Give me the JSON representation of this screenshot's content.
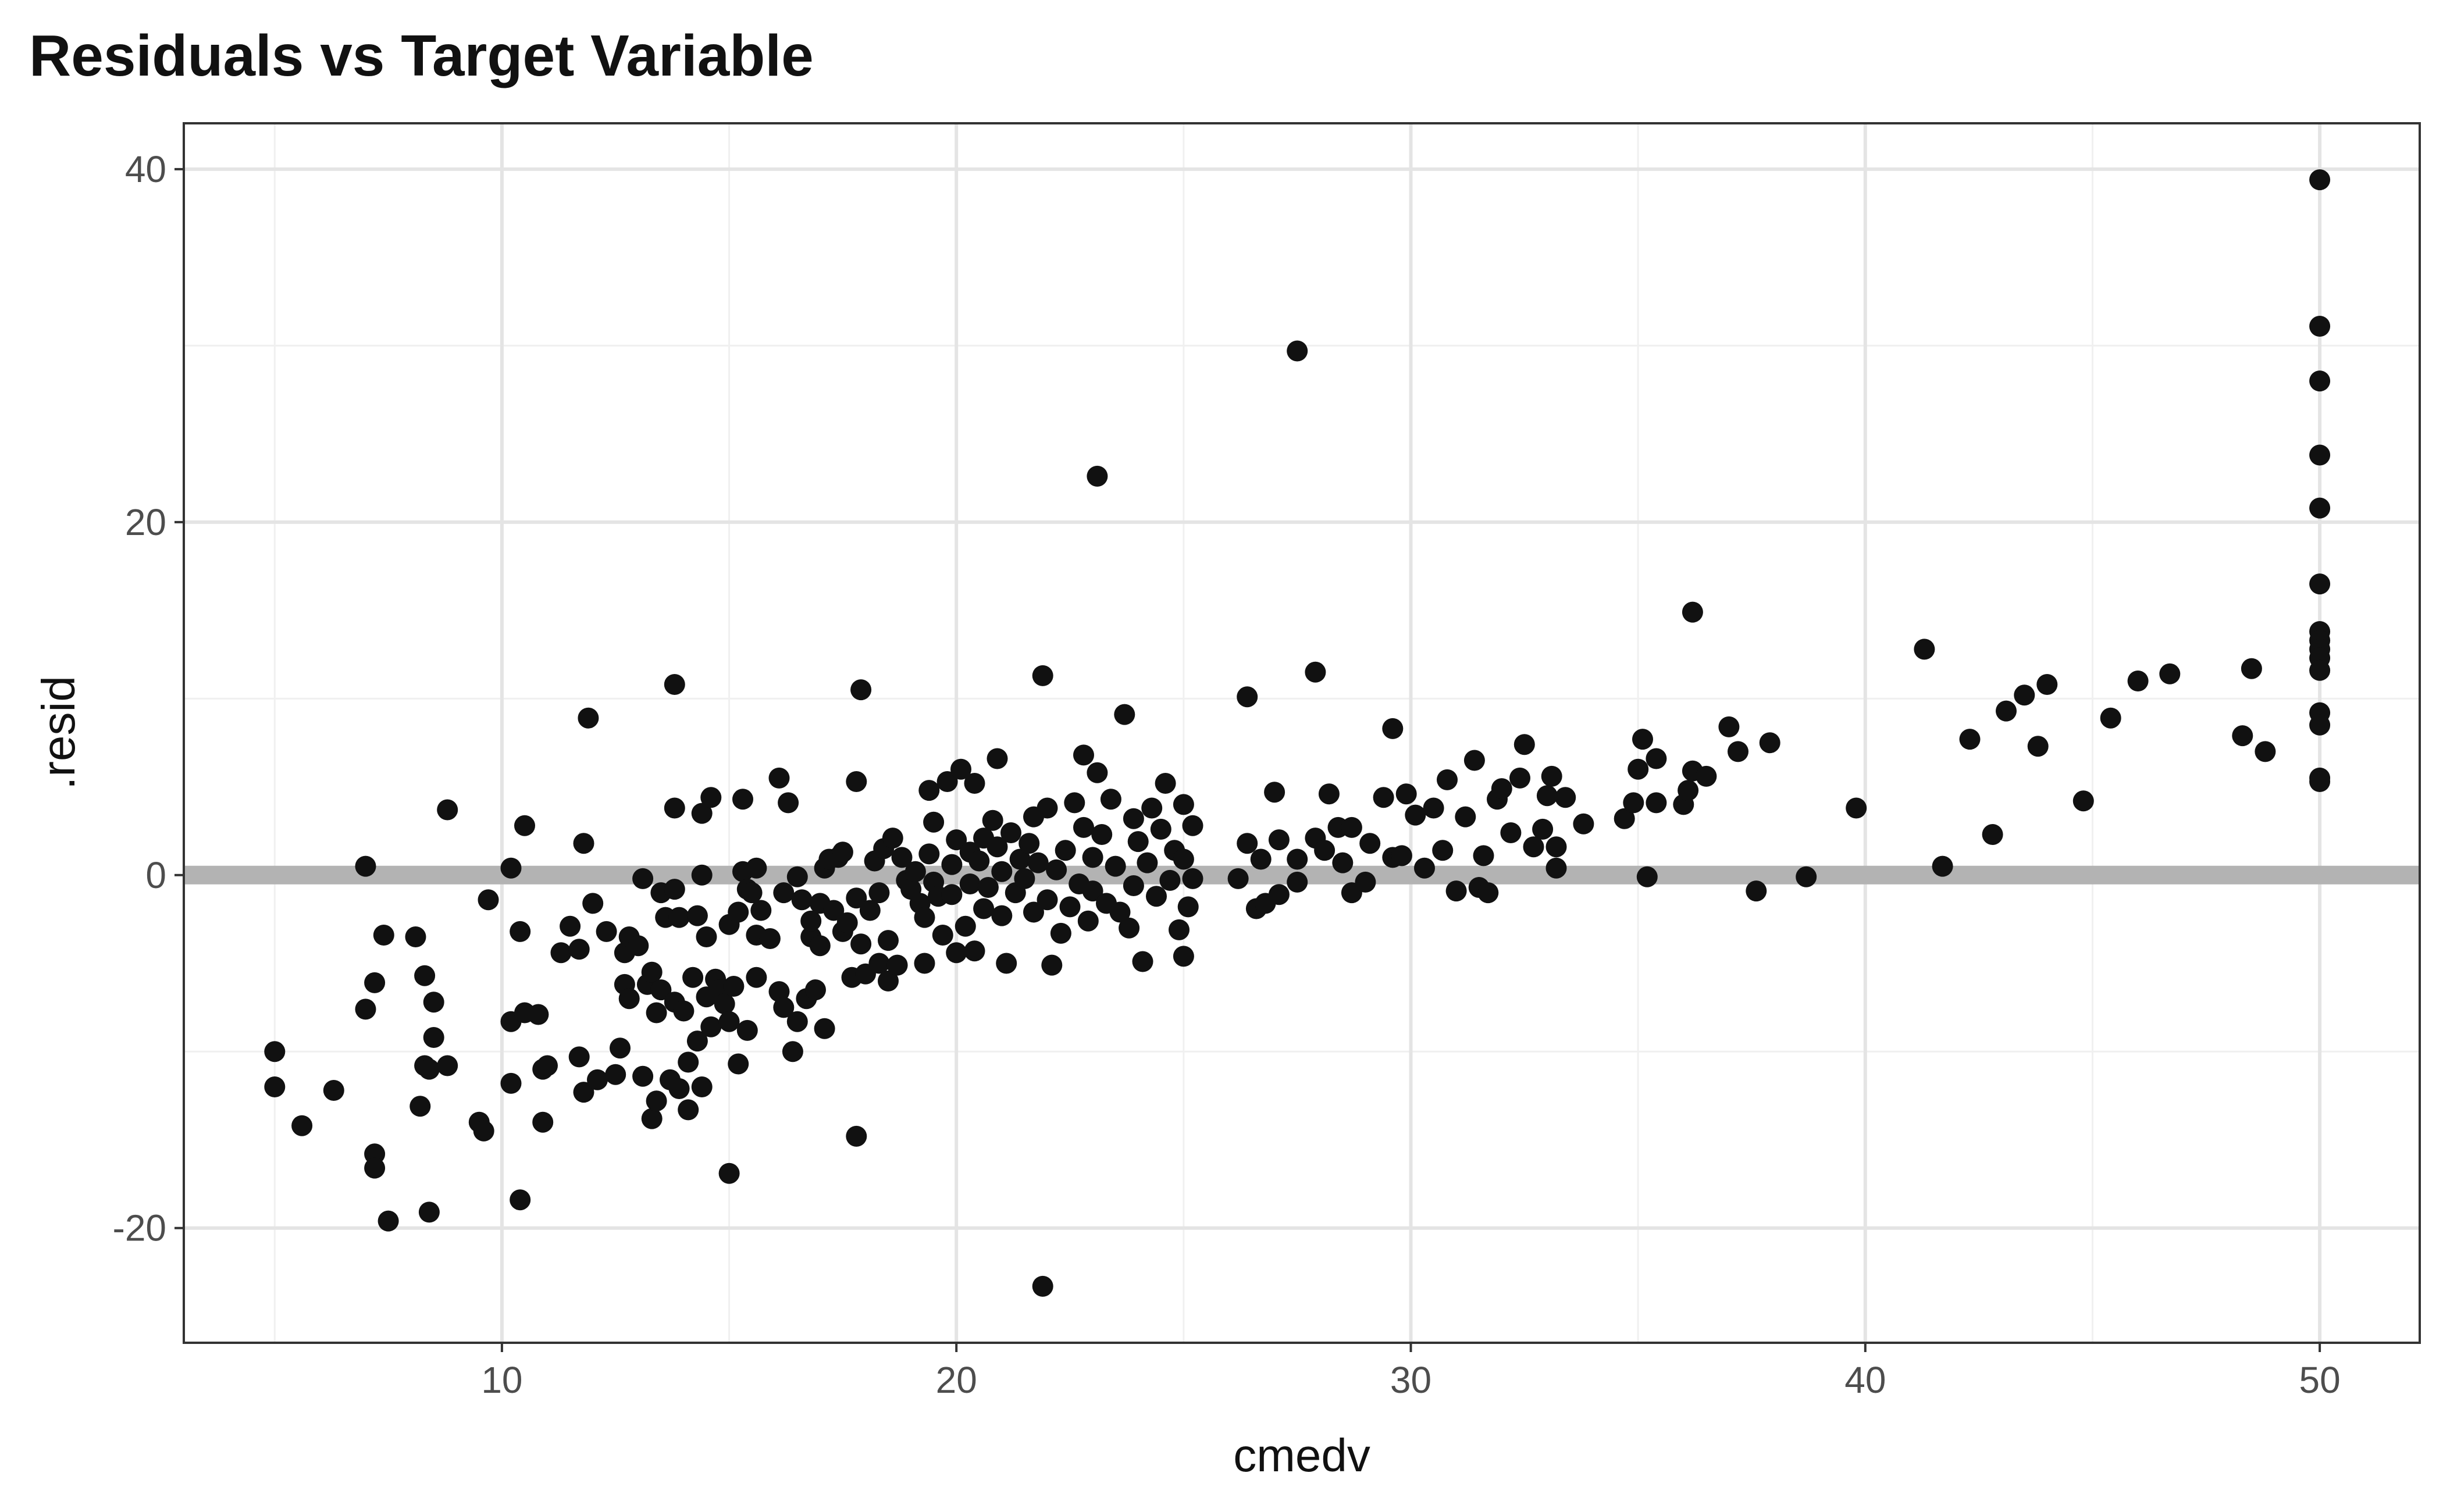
{
  "chart_data": {
    "type": "scatter",
    "title": "Residuals vs Target Variable",
    "xlabel": "cmedv",
    "ylabel": ".resid",
    "xlim": [
      3.0,
      52.2
    ],
    "ylim": [
      -26.5,
      42.6
    ],
    "x_ticks": [
      10,
      20,
      30,
      40,
      50
    ],
    "y_ticks": [
      -20,
      0,
      20,
      40
    ],
    "grid": true,
    "reference_line": {
      "y": 0,
      "color": "#b3b3b3"
    },
    "point_color": "#111111",
    "points": [
      [
        5.0,
        -10.0
      ],
      [
        5.0,
        -12.0
      ],
      [
        5.6,
        -14.2
      ],
      [
        6.3,
        -12.2
      ],
      [
        7.0,
        0.5
      ],
      [
        7.0,
        -7.6
      ],
      [
        7.2,
        -6.1
      ],
      [
        7.2,
        -15.8
      ],
      [
        7.2,
        -16.6
      ],
      [
        7.4,
        -3.4
      ],
      [
        7.5,
        -19.6
      ],
      [
        8.1,
        -3.5
      ],
      [
        8.2,
        -13.1
      ],
      [
        8.3,
        -5.7
      ],
      [
        8.3,
        -10.8
      ],
      [
        8.4,
        -11.0
      ],
      [
        8.4,
        -19.1
      ],
      [
        8.5,
        -7.2
      ],
      [
        8.5,
        -9.2
      ],
      [
        8.8,
        3.7
      ],
      [
        8.8,
        -10.8
      ],
      [
        9.5,
        -14.0
      ],
      [
        9.6,
        -14.5
      ],
      [
        9.7,
        -1.4
      ],
      [
        10.2,
        -11.8
      ],
      [
        10.2,
        -8.3
      ],
      [
        10.2,
        0.4
      ],
      [
        10.4,
        -18.4
      ],
      [
        10.4,
        -3.2
      ],
      [
        10.5,
        2.8
      ],
      [
        10.5,
        -7.8
      ],
      [
        10.8,
        -7.9
      ],
      [
        10.9,
        -14.0
      ],
      [
        10.9,
        -11.0
      ],
      [
        11.0,
        -10.8
      ],
      [
        11.3,
        -4.4
      ],
      [
        11.5,
        -2.9
      ],
      [
        11.7,
        -10.3
      ],
      [
        11.7,
        -4.2
      ],
      [
        11.8,
        -12.3
      ],
      [
        11.8,
        1.8
      ],
      [
        11.9,
        8.9
      ],
      [
        12.0,
        -1.6
      ],
      [
        12.1,
        -11.6
      ],
      [
        12.3,
        -3.2
      ],
      [
        12.5,
        -11.3
      ],
      [
        12.6,
        -9.8
      ],
      [
        12.7,
        -6.2
      ],
      [
        12.7,
        -4.4
      ],
      [
        12.8,
        -3.5
      ],
      [
        12.8,
        -7.0
      ],
      [
        13.0,
        -4.0
      ],
      [
        13.1,
        -0.2
      ],
      [
        13.1,
        -11.4
      ],
      [
        13.2,
        -6.2
      ],
      [
        13.3,
        -13.8
      ],
      [
        13.3,
        -5.5
      ],
      [
        13.4,
        -12.8
      ],
      [
        13.4,
        -7.8
      ],
      [
        13.5,
        -1.0
      ],
      [
        13.5,
        -6.5
      ],
      [
        13.6,
        -2.4
      ],
      [
        13.7,
        -11.6
      ],
      [
        13.8,
        10.8
      ],
      [
        13.8,
        -7.2
      ],
      [
        13.8,
        3.8
      ],
      [
        13.8,
        -0.8
      ],
      [
        13.9,
        -12.1
      ],
      [
        13.9,
        -2.4
      ],
      [
        14.0,
        -7.7
      ],
      [
        14.1,
        -13.3
      ],
      [
        14.1,
        -10.6
      ],
      [
        14.2,
        -5.8
      ],
      [
        14.3,
        -2.3
      ],
      [
        14.3,
        -9.4
      ],
      [
        14.4,
        -12.0
      ],
      [
        14.4,
        0.0
      ],
      [
        14.4,
        3.5
      ],
      [
        14.5,
        -3.5
      ],
      [
        14.5,
        -6.9
      ],
      [
        14.6,
        4.4
      ],
      [
        14.6,
        -8.6
      ],
      [
        14.7,
        -5.9
      ],
      [
        14.8,
        -6.5
      ],
      [
        14.9,
        -7.3
      ],
      [
        15.0,
        -8.3
      ],
      [
        15.0,
        -16.9
      ],
      [
        15.0,
        -2.8
      ],
      [
        15.1,
        -6.3
      ],
      [
        15.2,
        -10.7
      ],
      [
        15.2,
        -2.1
      ],
      [
        15.3,
        4.3
      ],
      [
        15.3,
        0.2
      ],
      [
        15.4,
        -8.8
      ],
      [
        15.4,
        -0.8
      ],
      [
        15.5,
        -1.0
      ],
      [
        15.6,
        -3.4
      ],
      [
        15.6,
        0.4
      ],
      [
        15.6,
        -5.8
      ],
      [
        15.7,
        -2.0
      ],
      [
        15.9,
        -3.6
      ],
      [
        16.1,
        -6.6
      ],
      [
        16.1,
        5.5
      ],
      [
        16.2,
        -1.0
      ],
      [
        16.2,
        -7.5
      ],
      [
        16.3,
        4.1
      ],
      [
        16.4,
        -10.0
      ],
      [
        16.5,
        -8.3
      ],
      [
        16.5,
        -0.1
      ],
      [
        16.6,
        -1.4
      ],
      [
        16.7,
        -7.0
      ],
      [
        16.8,
        -3.5
      ],
      [
        16.8,
        -2.6
      ],
      [
        16.9,
        -6.5
      ],
      [
        17.0,
        -4.0
      ],
      [
        17.0,
        -1.6
      ],
      [
        17.1,
        -8.7
      ],
      [
        17.1,
        0.4
      ],
      [
        17.2,
        0.9
      ],
      [
        17.3,
        -2.0
      ],
      [
        17.4,
        1.0
      ],
      [
        17.5,
        -3.2
      ],
      [
        17.5,
        1.3
      ],
      [
        17.6,
        -2.7
      ],
      [
        17.7,
        -5.8
      ],
      [
        17.8,
        -14.8
      ],
      [
        17.8,
        5.3
      ],
      [
        17.8,
        -1.3
      ],
      [
        17.9,
        10.5
      ],
      [
        17.9,
        -3.9
      ],
      [
        18.0,
        -5.6
      ],
      [
        18.1,
        -2.0
      ],
      [
        18.2,
        0.8
      ],
      [
        18.3,
        -5.0
      ],
      [
        18.3,
        -1.0
      ],
      [
        18.4,
        1.5
      ],
      [
        18.5,
        -6.0
      ],
      [
        18.5,
        -3.7
      ],
      [
        18.6,
        2.1
      ],
      [
        18.7,
        -5.1
      ],
      [
        18.8,
        1.0
      ],
      [
        18.9,
        -0.3
      ],
      [
        19.0,
        -0.8
      ],
      [
        19.1,
        0.2
      ],
      [
        19.2,
        -1.6
      ],
      [
        19.3,
        -2.4
      ],
      [
        19.3,
        -5.0
      ],
      [
        19.4,
        1.2
      ],
      [
        19.4,
        4.8
      ],
      [
        19.5,
        3.0
      ],
      [
        19.5,
        -0.4
      ],
      [
        19.6,
        -1.2
      ],
      [
        19.7,
        -3.4
      ],
      [
        19.8,
        5.3
      ],
      [
        19.9,
        -1.1
      ],
      [
        19.9,
        0.6
      ],
      [
        20.0,
        -4.4
      ],
      [
        20.0,
        2.0
      ],
      [
        20.1,
        6.0
      ],
      [
        20.2,
        -2.9
      ],
      [
        20.3,
        -0.5
      ],
      [
        20.3,
        1.3
      ],
      [
        20.4,
        5.2
      ],
      [
        20.4,
        -4.3
      ],
      [
        20.5,
        0.8
      ],
      [
        20.6,
        -1.9
      ],
      [
        20.6,
        2.1
      ],
      [
        20.7,
        -0.7
      ],
      [
        20.8,
        3.1
      ],
      [
        20.9,
        1.6
      ],
      [
        20.9,
        6.6
      ],
      [
        21.0,
        -2.3
      ],
      [
        21.0,
        0.2
      ],
      [
        21.1,
        -5.0
      ],
      [
        21.2,
        2.4
      ],
      [
        21.3,
        -1.0
      ],
      [
        21.4,
        0.9
      ],
      [
        21.5,
        -0.2
      ],
      [
        21.6,
        1.8
      ],
      [
        21.7,
        -2.1
      ],
      [
        21.7,
        3.3
      ],
      [
        21.8,
        0.7
      ],
      [
        21.9,
        11.3
      ],
      [
        21.9,
        -23.3
      ],
      [
        22.0,
        -1.4
      ],
      [
        22.0,
        3.8
      ],
      [
        22.1,
        -5.1
      ],
      [
        22.2,
        0.3
      ],
      [
        22.3,
        -3.3
      ],
      [
        22.4,
        1.4
      ],
      [
        22.5,
        -1.8
      ],
      [
        22.6,
        4.1
      ],
      [
        22.7,
        -0.5
      ],
      [
        22.8,
        2.7
      ],
      [
        22.8,
        6.8
      ],
      [
        22.9,
        -2.6
      ],
      [
        23.0,
        1.0
      ],
      [
        23.0,
        -0.9
      ],
      [
        23.1,
        22.6
      ],
      [
        23.1,
        5.8
      ],
      [
        23.2,
        2.3
      ],
      [
        23.3,
        -1.6
      ],
      [
        23.4,
        4.3
      ],
      [
        23.5,
        0.5
      ],
      [
        23.6,
        -2.1
      ],
      [
        23.7,
        9.1
      ],
      [
        23.8,
        -3.0
      ],
      [
        23.9,
        3.2
      ],
      [
        23.9,
        -0.6
      ],
      [
        24.0,
        1.9
      ],
      [
        24.1,
        -4.9
      ],
      [
        24.2,
        0.7
      ],
      [
        24.3,
        3.8
      ],
      [
        24.4,
        -1.2
      ],
      [
        24.5,
        2.6
      ],
      [
        24.6,
        5.2
      ],
      [
        24.7,
        -0.3
      ],
      [
        24.8,
        1.4
      ],
      [
        24.9,
        -3.1
      ],
      [
        25.0,
        4.0
      ],
      [
        25.0,
        -4.6
      ],
      [
        25.0,
        0.9
      ],
      [
        25.1,
        -1.8
      ],
      [
        25.2,
        2.8
      ],
      [
        25.2,
        -0.2
      ],
      [
        26.2,
        -0.2
      ],
      [
        26.4,
        10.1
      ],
      [
        26.4,
        1.8
      ],
      [
        26.6,
        -1.9
      ],
      [
        26.7,
        0.9
      ],
      [
        26.8,
        -1.6
      ],
      [
        27.0,
        4.7
      ],
      [
        27.1,
        -1.1
      ],
      [
        27.1,
        2.0
      ],
      [
        27.5,
        29.7
      ],
      [
        27.5,
        -0.4
      ],
      [
        27.5,
        0.9
      ],
      [
        27.9,
        11.5
      ],
      [
        27.9,
        2.1
      ],
      [
        28.1,
        1.4
      ],
      [
        28.2,
        4.6
      ],
      [
        28.4,
        2.7
      ],
      [
        28.5,
        0.7
      ],
      [
        28.7,
        -1.0
      ],
      [
        28.7,
        2.7
      ],
      [
        29.0,
        -0.4
      ],
      [
        29.1,
        1.8
      ],
      [
        29.4,
        4.4
      ],
      [
        29.6,
        8.3
      ],
      [
        29.6,
        1.0
      ],
      [
        29.8,
        1.1
      ],
      [
        29.9,
        4.6
      ],
      [
        30.1,
        3.4
      ],
      [
        30.3,
        0.4
      ],
      [
        30.5,
        3.8
      ],
      [
        30.7,
        1.4
      ],
      [
        30.8,
        5.4
      ],
      [
        31.0,
        -0.9
      ],
      [
        31.2,
        3.3
      ],
      [
        31.4,
        6.5
      ],
      [
        31.5,
        -0.7
      ],
      [
        31.6,
        1.1
      ],
      [
        31.7,
        -1.0
      ],
      [
        31.9,
        4.3
      ],
      [
        32.0,
        4.9
      ],
      [
        32.2,
        2.4
      ],
      [
        32.4,
        5.5
      ],
      [
        32.5,
        7.4
      ],
      [
        32.7,
        1.6
      ],
      [
        32.9,
        2.6
      ],
      [
        33.0,
        4.5
      ],
      [
        33.1,
        5.6
      ],
      [
        33.2,
        0.4
      ],
      [
        33.2,
        1.6
      ],
      [
        33.4,
        4.4
      ],
      [
        33.8,
        2.9
      ],
      [
        34.7,
        3.2
      ],
      [
        34.9,
        4.1
      ],
      [
        35.0,
        6.0
      ],
      [
        35.1,
        7.7
      ],
      [
        35.2,
        -0.1
      ],
      [
        35.4,
        4.1
      ],
      [
        35.4,
        6.6
      ],
      [
        36.0,
        4.0
      ],
      [
        36.1,
        4.8
      ],
      [
        36.2,
        14.9
      ],
      [
        36.2,
        5.9
      ],
      [
        36.5,
        5.6
      ],
      [
        37.0,
        8.4
      ],
      [
        37.2,
        7.0
      ],
      [
        37.6,
        -0.9
      ],
      [
        37.9,
        7.5
      ],
      [
        38.7,
        -0.1
      ],
      [
        39.8,
        3.8
      ],
      [
        41.3,
        12.8
      ],
      [
        41.7,
        0.5
      ],
      [
        42.3,
        7.7
      ],
      [
        42.8,
        2.3
      ],
      [
        43.1,
        9.3
      ],
      [
        43.5,
        10.2
      ],
      [
        43.8,
        7.3
      ],
      [
        44.0,
        10.8
      ],
      [
        44.8,
        4.2
      ],
      [
        45.4,
        8.9
      ],
      [
        46.0,
        11.0
      ],
      [
        46.7,
        11.4
      ],
      [
        48.3,
        7.9
      ],
      [
        48.5,
        11.7
      ],
      [
        48.8,
        7.0
      ],
      [
        50.0,
        39.4
      ],
      [
        50.0,
        31.1
      ],
      [
        50.0,
        28.0
      ],
      [
        50.0,
        23.8
      ],
      [
        50.0,
        20.8
      ],
      [
        50.0,
        16.5
      ],
      [
        50.0,
        13.8
      ],
      [
        50.0,
        13.3
      ],
      [
        50.0,
        12.8
      ],
      [
        50.0,
        12.3
      ],
      [
        50.0,
        11.6
      ],
      [
        50.0,
        9.2
      ],
      [
        50.0,
        8.5
      ],
      [
        50.0,
        5.5
      ],
      [
        50.0,
        5.3
      ]
    ]
  }
}
